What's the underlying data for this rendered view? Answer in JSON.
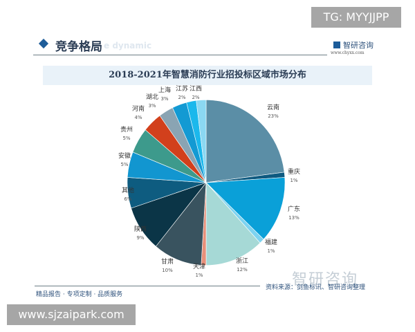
{
  "watermark_tag": "TG: MYYJJPP",
  "header": {
    "section_title": "竞争格局",
    "ghost_text": "e dynamic",
    "brand_name": "智研咨询",
    "brand_url": "www.chyxx.com"
  },
  "chart_data": {
    "type": "pie",
    "title": "2018-2021年智慧消防行业招投标区域市场分布",
    "unit": "%",
    "start_angle": "12 o'clock, clockwise",
    "categories": [
      "云南",
      "重庆",
      "广东",
      "福建",
      "浙江",
      "天津",
      "甘肃",
      "陕西",
      "其他",
      "安徽",
      "贵州",
      "河南",
      "湖北",
      "上海",
      "江苏",
      "江西"
    ],
    "values": [
      23,
      1,
      13,
      1,
      12,
      1,
      10,
      9,
      6,
      5,
      5,
      4,
      3,
      3,
      2,
      2
    ],
    "colors": [
      "#5b8ea6",
      "#0e5a80",
      "#0aa0d8",
      "#7dd3f0",
      "#a6d9d6",
      "#e8907a",
      "#39535f",
      "#0b3547",
      "#0e5c80",
      "#1296d0",
      "#3d9a8c",
      "#d2401c",
      "#8aa4b3",
      "#139ad3",
      "#1bb8ec",
      "#8bd8f2"
    ],
    "labels": [
      "23%",
      "1%",
      "13%",
      "1%",
      "12%",
      "1%",
      "10%",
      "9%",
      "6%",
      "5%",
      "5%",
      "4%",
      "3%",
      "3%",
      "2%",
      "2%"
    ]
  },
  "footer": {
    "tagline": "精品报告 · 专项定制 · 品质服务",
    "source": "资料来源：剑鱼标讯、智研咨询整理",
    "watermark": "智研咨询"
  },
  "site_tag": "www.sjzaipark.com"
}
